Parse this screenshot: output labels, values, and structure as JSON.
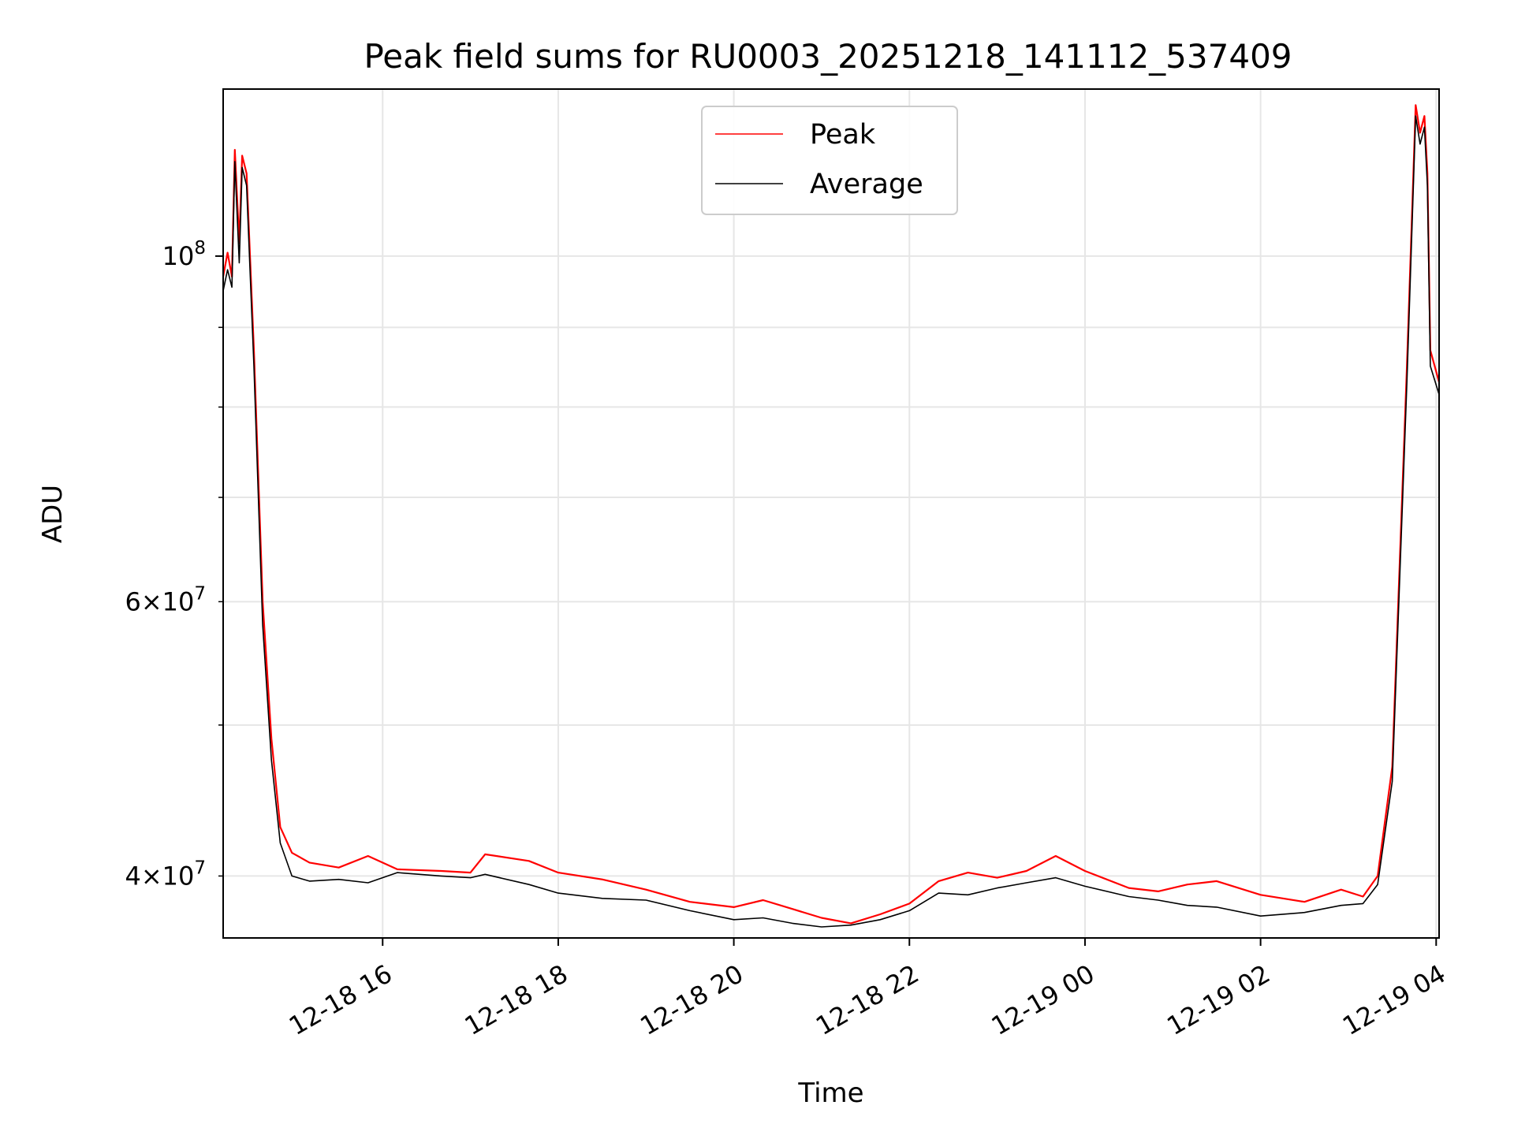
{
  "chart_data": {
    "type": "line",
    "title": "Peak field sums for RU0003_20251218_141112_537409",
    "xlabel": "Time",
    "ylabel": "ADU",
    "x_unit": "datetime",
    "xlim": [
      "2025-12-18 14:11",
      "2025-12-19 04:02"
    ],
    "ylim": [
      36500000,
      128000000
    ],
    "yscale": "log",
    "grid": true,
    "legend_position": "upper center",
    "x_ticks": [
      "2025-12-18 16:00",
      "2025-12-18 18:00",
      "2025-12-18 20:00",
      "2025-12-18 22:00",
      "2025-12-19 00:00",
      "2025-12-19 02:00",
      "2025-12-19 04:00"
    ],
    "x_tick_labels": [
      "12-18 16",
      "12-18 18",
      "12-18 20",
      "12-18 22",
      "12-19 00",
      "12-19 02",
      "12-19 04"
    ],
    "y_ticks_major": [
      {
        "value": 100000000,
        "mantissa": "",
        "exponent": "8"
      }
    ],
    "y_ticks_minor": [
      {
        "value": 40000000,
        "mantissa": "4",
        "exponent": "7"
      },
      {
        "value": 60000000,
        "mantissa": "6",
        "exponent": "7"
      }
    ],
    "y_tick_times_symbol": "×",
    "y_tick_base": "10",
    "y_gridlines": [
      40000000,
      50000000,
      60000000,
      70000000,
      80000000,
      90000000,
      100000000
    ],
    "series": [
      {
        "name": "Peak",
        "color": "#ff0000",
        "points": [
          [
            "2025-12-18 14:11",
            97000000
          ],
          [
            "2025-12-18 14:14",
            100500000
          ],
          [
            "2025-12-18 14:17",
            97000000
          ],
          [
            "2025-12-18 14:19",
            117000000
          ],
          [
            "2025-12-18 14:22",
            102000000
          ],
          [
            "2025-12-18 14:24",
            116000000
          ],
          [
            "2025-12-18 14:27",
            113000000
          ],
          [
            "2025-12-18 14:32",
            87000000
          ],
          [
            "2025-12-18 14:38",
            60000000
          ],
          [
            "2025-12-18 14:44",
            49000000
          ],
          [
            "2025-12-18 14:50",
            43000000
          ],
          [
            "2025-12-18 14:58",
            41400000
          ],
          [
            "2025-12-18 15:10",
            40800000
          ],
          [
            "2025-12-18 15:30",
            40500000
          ],
          [
            "2025-12-18 15:50",
            41200000
          ],
          [
            "2025-12-18 16:10",
            40400000
          ],
          [
            "2025-12-18 16:40",
            40300000
          ],
          [
            "2025-12-18 17:00",
            40200000
          ],
          [
            "2025-12-18 17:10",
            41300000
          ],
          [
            "2025-12-18 17:40",
            40900000
          ],
          [
            "2025-12-18 18:00",
            40200000
          ],
          [
            "2025-12-18 18:30",
            39800000
          ],
          [
            "2025-12-18 19:00",
            39200000
          ],
          [
            "2025-12-18 19:30",
            38500000
          ],
          [
            "2025-12-18 20:00",
            38200000
          ],
          [
            "2025-12-18 20:20",
            38600000
          ],
          [
            "2025-12-18 20:40",
            38100000
          ],
          [
            "2025-12-18 21:00",
            37600000
          ],
          [
            "2025-12-18 21:20",
            37300000
          ],
          [
            "2025-12-18 21:40",
            37800000
          ],
          [
            "2025-12-18 22:00",
            38400000
          ],
          [
            "2025-12-18 22:20",
            39700000
          ],
          [
            "2025-12-18 22:40",
            40200000
          ],
          [
            "2025-12-18 23:00",
            39900000
          ],
          [
            "2025-12-18 23:20",
            40300000
          ],
          [
            "2025-12-18 23:40",
            41200000
          ],
          [
            "2025-12-19 00:00",
            40300000
          ],
          [
            "2025-12-19 00:30",
            39300000
          ],
          [
            "2025-12-19 00:50",
            39100000
          ],
          [
            "2025-12-19 01:10",
            39500000
          ],
          [
            "2025-12-19 01:30",
            39700000
          ],
          [
            "2025-12-19 02:00",
            38900000
          ],
          [
            "2025-12-19 02:30",
            38500000
          ],
          [
            "2025-12-19 02:55",
            39200000
          ],
          [
            "2025-12-19 03:10",
            38800000
          ],
          [
            "2025-12-19 03:20",
            40000000
          ],
          [
            "2025-12-19 03:30",
            47000000
          ],
          [
            "2025-12-19 03:40",
            85000000
          ],
          [
            "2025-12-19 03:46",
            125000000
          ],
          [
            "2025-12-19 03:49",
            120000000
          ],
          [
            "2025-12-19 03:52",
            123000000
          ],
          [
            "2025-12-19 03:54",
            113000000
          ],
          [
            "2025-12-19 03:56",
            87000000
          ],
          [
            "2025-12-19 04:02",
            83000000
          ]
        ]
      },
      {
        "name": "Average",
        "color": "#000000",
        "points": [
          [
            "2025-12-18 14:11",
            95000000
          ],
          [
            "2025-12-18 14:14",
            98000000
          ],
          [
            "2025-12-18 14:17",
            95500000
          ],
          [
            "2025-12-18 14:19",
            115000000
          ],
          [
            "2025-12-18 14:22",
            99000000
          ],
          [
            "2025-12-18 14:24",
            114000000
          ],
          [
            "2025-12-18 14:27",
            111000000
          ],
          [
            "2025-12-18 14:32",
            85000000
          ],
          [
            "2025-12-18 14:38",
            58000000
          ],
          [
            "2025-12-18 14:44",
            47500000
          ],
          [
            "2025-12-18 14:50",
            42000000
          ],
          [
            "2025-12-18 14:58",
            40000000
          ],
          [
            "2025-12-18 15:10",
            39700000
          ],
          [
            "2025-12-18 15:30",
            39800000
          ],
          [
            "2025-12-18 15:50",
            39600000
          ],
          [
            "2025-12-18 16:10",
            40200000
          ],
          [
            "2025-12-18 16:40",
            40000000
          ],
          [
            "2025-12-18 17:00",
            39900000
          ],
          [
            "2025-12-18 17:10",
            40100000
          ],
          [
            "2025-12-18 17:40",
            39500000
          ],
          [
            "2025-12-18 18:00",
            39000000
          ],
          [
            "2025-12-18 18:30",
            38700000
          ],
          [
            "2025-12-18 19:00",
            38600000
          ],
          [
            "2025-12-18 19:30",
            38000000
          ],
          [
            "2025-12-18 20:00",
            37500000
          ],
          [
            "2025-12-18 20:20",
            37600000
          ],
          [
            "2025-12-18 20:40",
            37300000
          ],
          [
            "2025-12-18 21:00",
            37100000
          ],
          [
            "2025-12-18 21:20",
            37200000
          ],
          [
            "2025-12-18 21:40",
            37500000
          ],
          [
            "2025-12-18 22:00",
            38000000
          ],
          [
            "2025-12-18 22:20",
            39000000
          ],
          [
            "2025-12-18 22:40",
            38900000
          ],
          [
            "2025-12-18 23:00",
            39300000
          ],
          [
            "2025-12-18 23:20",
            39600000
          ],
          [
            "2025-12-18 23:40",
            39900000
          ],
          [
            "2025-12-19 00:00",
            39400000
          ],
          [
            "2025-12-19 00:30",
            38800000
          ],
          [
            "2025-12-19 00:50",
            38600000
          ],
          [
            "2025-12-19 01:10",
            38300000
          ],
          [
            "2025-12-19 01:30",
            38200000
          ],
          [
            "2025-12-19 02:00",
            37700000
          ],
          [
            "2025-12-19 02:30",
            37900000
          ],
          [
            "2025-12-19 02:55",
            38300000
          ],
          [
            "2025-12-19 03:10",
            38400000
          ],
          [
            "2025-12-19 03:20",
            39500000
          ],
          [
            "2025-12-19 03:30",
            46000000
          ],
          [
            "2025-12-19 03:40",
            83000000
          ],
          [
            "2025-12-19 03:46",
            123000000
          ],
          [
            "2025-12-19 03:49",
            118000000
          ],
          [
            "2025-12-19 03:52",
            121000000
          ],
          [
            "2025-12-19 03:54",
            111000000
          ],
          [
            "2025-12-19 03:56",
            85000000
          ],
          [
            "2025-12-19 04:02",
            81500000
          ]
        ]
      }
    ]
  }
}
